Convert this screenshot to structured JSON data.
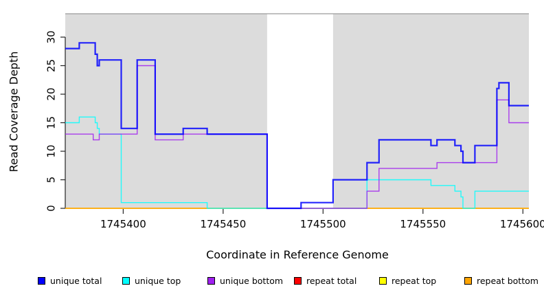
{
  "figure": {
    "background": "#ffffff",
    "plot_bg": "#dcdcdc",
    "axis_color": "#222222",
    "plot_top_border_color": "#9a9a9a"
  },
  "chart_data": {
    "type": "line",
    "subtype": "step-coverage",
    "title": "",
    "xlabel": "Coordinate in Reference Genome",
    "ylabel": "Read Coverage Depth",
    "xlim": [
      1745371,
      1745603
    ],
    "ylim": [
      0,
      34
    ],
    "xticks": [
      1745400,
      1745450,
      1745500,
      1745550,
      1745600
    ],
    "yticks": [
      0,
      5,
      10,
      15,
      20,
      25,
      30
    ],
    "grid": false,
    "legend_position": "bottom",
    "shaded_regions": [
      {
        "from": 1745371,
        "to": 1745472,
        "color": "#dcdcdc"
      },
      {
        "from": 1745505,
        "to": 1745603,
        "color": "#dcdcdc"
      }
    ],
    "gap_region": {
      "from": 1745472,
      "to": 1745505
    },
    "x_end": 1745603,
    "draw_order": [
      3,
      4,
      5,
      1,
      2,
      0
    ],
    "series": [
      {
        "name": "unique total",
        "color": "#0000ff",
        "width": 2.2,
        "steps": [
          [
            1745371,
            28
          ],
          [
            1745378,
            29
          ],
          [
            1745386,
            27
          ],
          [
            1745387,
            25
          ],
          [
            1745388,
            26
          ],
          [
            1745399,
            14
          ],
          [
            1745407,
            26
          ],
          [
            1745416,
            13
          ],
          [
            1745430,
            14
          ],
          [
            1745442,
            13
          ],
          [
            1745472,
            0
          ],
          [
            1745489,
            1
          ],
          [
            1745505,
            5
          ],
          [
            1745522,
            8
          ],
          [
            1745528,
            12
          ],
          [
            1745554,
            11
          ],
          [
            1745557,
            12
          ],
          [
            1745566,
            11
          ],
          [
            1745569,
            10
          ],
          [
            1745570,
            8
          ],
          [
            1745576,
            11
          ],
          [
            1745587,
            21
          ],
          [
            1745588,
            22
          ],
          [
            1745593,
            18
          ]
        ]
      },
      {
        "name": "unique top",
        "color": "#00ffff",
        "width": 1.4,
        "steps": [
          [
            1745371,
            15
          ],
          [
            1745378,
            16
          ],
          [
            1745386,
            15
          ],
          [
            1745387,
            14
          ],
          [
            1745388,
            13
          ],
          [
            1745399,
            1
          ],
          [
            1745442,
            0
          ],
          [
            1745522,
            5
          ],
          [
            1745554,
            4
          ],
          [
            1745566,
            3
          ],
          [
            1745569,
            2
          ],
          [
            1745570,
            0
          ],
          [
            1745576,
            3
          ]
        ]
      },
      {
        "name": "unique bottom",
        "color": "#a020f0",
        "width": 1.4,
        "steps": [
          [
            1745371,
            13
          ],
          [
            1745385,
            12
          ],
          [
            1745388,
            13
          ],
          [
            1745407,
            25
          ],
          [
            1745416,
            12
          ],
          [
            1745430,
            13
          ],
          [
            1745472,
            0
          ],
          [
            1745522,
            3
          ],
          [
            1745528,
            7
          ],
          [
            1745557,
            8
          ],
          [
            1745587,
            19
          ],
          [
            1745593,
            15
          ]
        ]
      },
      {
        "name": "repeat total",
        "color": "#ff0000",
        "width": 1.2,
        "steps": [
          [
            1745371,
            0
          ]
        ]
      },
      {
        "name": "repeat top",
        "color": "#ffff00",
        "width": 1.2,
        "steps": [
          [
            1745371,
            0
          ]
        ]
      },
      {
        "name": "repeat bottom",
        "color": "#ffa500",
        "width": 1.8,
        "steps": [
          [
            1745371,
            0
          ]
        ]
      }
    ]
  }
}
